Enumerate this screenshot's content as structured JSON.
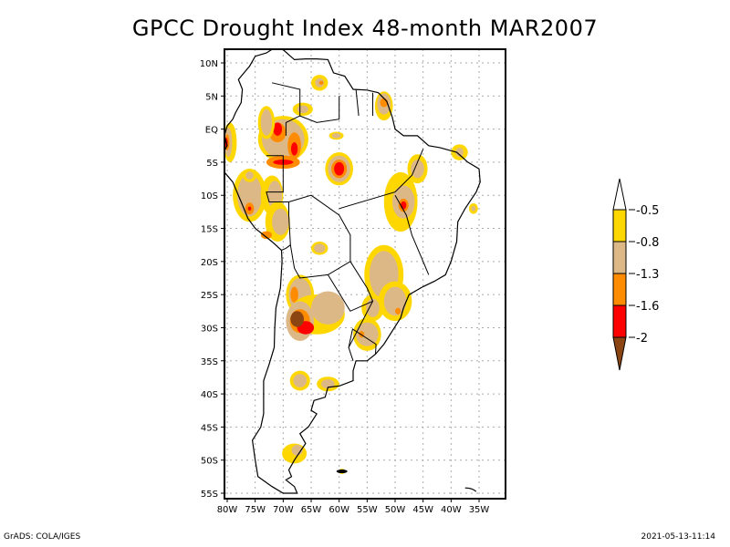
{
  "title": "GPCC Drought Index 48-month MAR2007",
  "footer": {
    "left": "GrADS: COLA/IGES",
    "right": "2021-05-13-11:14"
  },
  "map": {
    "region": "South America",
    "lat_labels": [
      "10N",
      "5N",
      "EQ",
      "5S",
      "10S",
      "15S",
      "20S",
      "25S",
      "30S",
      "35S",
      "40S",
      "45S",
      "50S",
      "55S"
    ],
    "lat_values": [
      10,
      5,
      0,
      -5,
      -10,
      -15,
      -20,
      -25,
      -30,
      -35,
      -40,
      -45,
      -50,
      -55
    ],
    "lon_labels": [
      "80W",
      "75W",
      "70W",
      "65W",
      "60W",
      "55W",
      "50W",
      "45W",
      "40W",
      "35W"
    ],
    "lon_values": [
      -80,
      -75,
      -70,
      -65,
      -60,
      -55,
      -50,
      -45,
      -40,
      -35
    ],
    "lat_range": [
      -56,
      12
    ],
    "lon_range": [
      -81,
      -32
    ],
    "gridlines": true
  },
  "legend": {
    "levels": [
      "-0.5",
      "-0.8",
      "-1.3",
      "-1.6",
      "-2"
    ],
    "colors": {
      "above": "#ffffff",
      "c1": "#ffd700",
      "c2": "#ddb887",
      "c3": "#ff8c00",
      "c4": "#ff0000",
      "below": "#8b4513"
    }
  },
  "features": [
    {
      "name": "drought-area-venezuela-east",
      "lon": -63.5,
      "lat": 7,
      "class": "c3"
    },
    {
      "name": "drought-area-guiana",
      "lon": -52,
      "lat": 4,
      "class": "c3"
    },
    {
      "name": "drought-area-colombia-east",
      "lon": -71,
      "lat": 1,
      "class": "c2"
    },
    {
      "name": "drought-area-amazon-west",
      "lon": -68,
      "lat": -2,
      "class": "c4"
    },
    {
      "name": "drought-area-amazon-central",
      "lon": -60,
      "lat": -6,
      "class": "c4"
    },
    {
      "name": "drought-area-ecuador",
      "lon": -80,
      "lat": -2,
      "class": "c4"
    },
    {
      "name": "drought-area-peru",
      "lon": -75,
      "lat": -12,
      "class": "c3"
    },
    {
      "name": "drought-area-bolivia",
      "lon": -69,
      "lat": -14,
      "class": "c2"
    },
    {
      "name": "drought-area-tocantins",
      "lon": -49,
      "lat": -11,
      "class": "c4"
    },
    {
      "name": "drought-area-northeast-brazil",
      "lon": -41,
      "lat": -5,
      "class": "c2"
    },
    {
      "name": "drought-area-parana",
      "lon": -52,
      "lat": -21,
      "class": "c2"
    },
    {
      "name": "drought-area-argentina-nw",
      "lon": -67,
      "lat": -29,
      "class": "below"
    },
    {
      "name": "drought-area-uruguay",
      "lon": -55,
      "lat": -31,
      "class": "c2"
    },
    {
      "name": "drought-area-patagonia-north",
      "lon": -67,
      "lat": -38,
      "class": "c2"
    },
    {
      "name": "drought-area-patagonia-east",
      "lon": -62,
      "lat": -38,
      "class": "c2"
    },
    {
      "name": "drought-area-patagonia-south",
      "lon": -68,
      "lat": -49,
      "class": "c2"
    }
  ]
}
